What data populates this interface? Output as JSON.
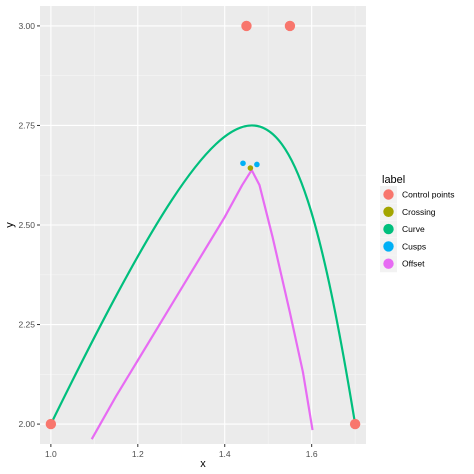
{
  "chart_data": {
    "type": "scatter",
    "xlabel": "x",
    "ylabel": "y",
    "xlim": [
      0.975,
      1.725
    ],
    "ylim": [
      1.95,
      3.05
    ],
    "x_ticks": [
      1.0,
      1.2,
      1.4,
      1.6
    ],
    "x_tick_labels": [
      "1.0",
      "1.2",
      "1.4",
      "1.6"
    ],
    "y_ticks": [
      2.0,
      2.25,
      2.5,
      2.75,
      3.0
    ],
    "y_tick_labels": [
      "2.00",
      "2.25",
      "2.50",
      "2.75",
      "3.00"
    ],
    "grid": true,
    "legend": {
      "title": "label",
      "position": "right",
      "entries": [
        "Control points",
        "Crossing",
        "Curve",
        "Cusps",
        "Offset"
      ]
    },
    "colors": {
      "Control points": "#F8766D",
      "Crossing": "#A3A500",
      "Curve": "#00BF7D",
      "Cusps": "#00B0F6",
      "Offset": "#E76BF3"
    },
    "series": [
      {
        "name": "Control points",
        "kind": "points",
        "points": [
          [
            1.0,
            2.0
          ],
          [
            1.45,
            3.0
          ],
          [
            1.55,
            3.0
          ],
          [
            1.7,
            2.0
          ]
        ]
      },
      {
        "name": "Curve",
        "kind": "bezier",
        "control_points": [
          [
            1.0,
            2.0
          ],
          [
            1.45,
            3.0
          ],
          [
            1.55,
            3.0
          ],
          [
            1.7,
            2.0
          ]
        ]
      },
      {
        "name": "Offset",
        "kind": "path",
        "points": [
          [
            1.094,
            1.962
          ],
          [
            1.15,
            2.07
          ],
          [
            1.2,
            2.16
          ],
          [
            1.25,
            2.25
          ],
          [
            1.3,
            2.34
          ],
          [
            1.35,
            2.43
          ],
          [
            1.4,
            2.52
          ],
          [
            1.44,
            2.6
          ],
          [
            1.462,
            2.638
          ],
          [
            1.48,
            2.6
          ],
          [
            1.51,
            2.47
          ],
          [
            1.55,
            2.28
          ],
          [
            1.58,
            2.13
          ],
          [
            1.602,
            1.985
          ]
        ]
      },
      {
        "name": "Cusps",
        "kind": "points",
        "points": [
          [
            1.442,
            2.655
          ],
          [
            1.474,
            2.652
          ]
        ]
      },
      {
        "name": "Crossing",
        "kind": "points",
        "points": [
          [
            1.459,
            2.643
          ]
        ]
      }
    ]
  }
}
